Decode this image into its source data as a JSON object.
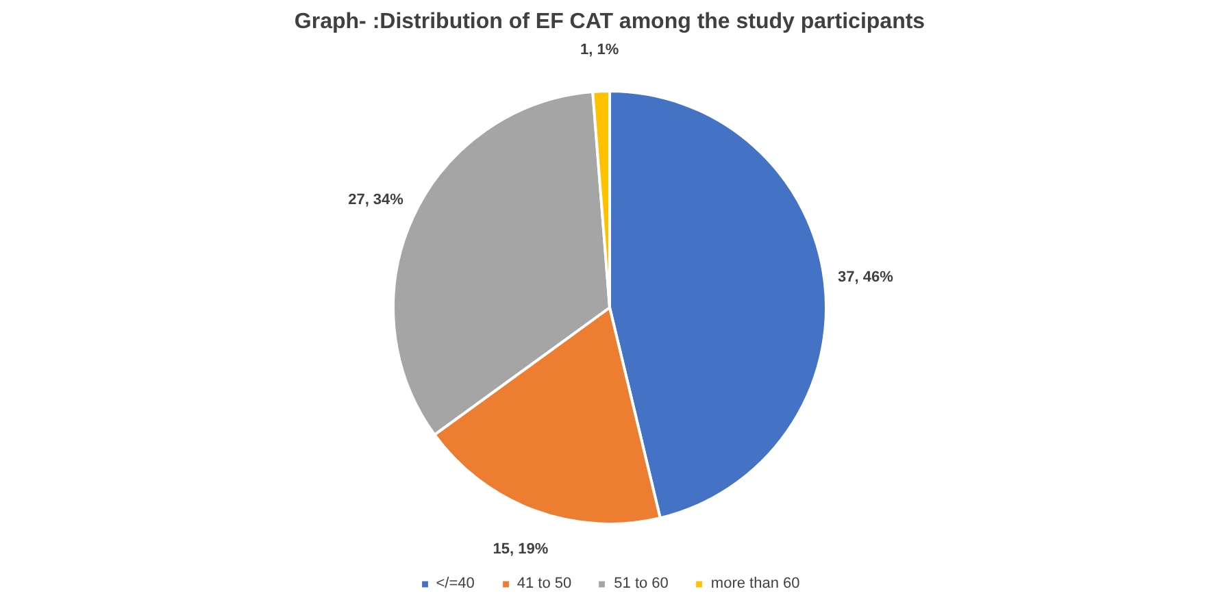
{
  "chart_data": {
    "type": "pie",
    "title": "Graph- :Distribution of EF CAT among the study participants",
    "categories": [
      "</=40",
      "41 to 50",
      "51 to 60",
      "more than 60"
    ],
    "values": [
      37,
      15,
      27,
      1
    ],
    "colors": [
      "#4472c4",
      "#ed7d31",
      "#a5a5a5",
      "#ffc000"
    ],
    "value_labels": [
      "37, 46%",
      "15, 19%",
      "27, 34%",
      "1, 1%"
    ],
    "legend": "bottom"
  }
}
